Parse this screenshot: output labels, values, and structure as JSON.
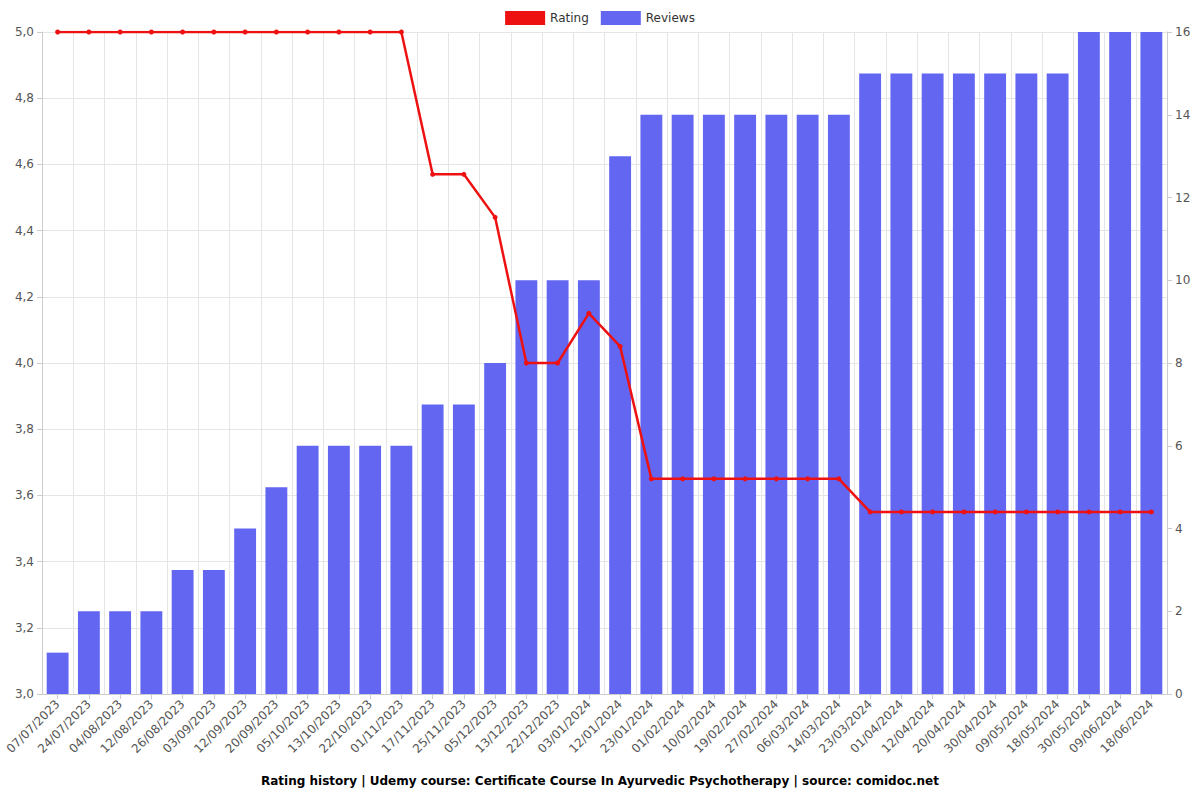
{
  "chart_data": {
    "type": "bar",
    "title": "Rating history | Udemy course: Certificate Course In Ayurvedic Psychotherapy | source: comidoc.net",
    "categories": [
      "07/07/2023",
      "24/07/2023",
      "04/08/2023",
      "12/08/2023",
      "26/08/2023",
      "03/09/2023",
      "12/09/2023",
      "20/09/2023",
      "05/10/2023",
      "13/10/2023",
      "22/10/2023",
      "01/11/2023",
      "17/11/2023",
      "25/11/2023",
      "05/12/2023",
      "13/12/2023",
      "22/12/2023",
      "03/01/2024",
      "12/01/2024",
      "23/01/2024",
      "01/02/2024",
      "10/02/2024",
      "19/02/2024",
      "27/02/2024",
      "06/03/2024",
      "14/03/2024",
      "23/03/2024",
      "01/04/2024",
      "12/04/2024",
      "20/04/2024",
      "30/04/2024",
      "09/05/2024",
      "18/05/2024",
      "30/05/2024",
      "09/06/2024",
      "18/06/2024"
    ],
    "series": [
      {
        "name": "Rating",
        "type": "line",
        "color": "#ee1111",
        "marker": "circle",
        "values": [
          5.0,
          5.0,
          5.0,
          5.0,
          5.0,
          5.0,
          5.0,
          5.0,
          5.0,
          5.0,
          5.0,
          5.0,
          4.57,
          4.57,
          4.44,
          4.0,
          4.0,
          4.15,
          4.05,
          3.65,
          3.65,
          3.65,
          3.65,
          3.65,
          3.65,
          3.65,
          3.55,
          3.55,
          3.55,
          3.55,
          3.55,
          3.55,
          3.55,
          3.55,
          3.55,
          3.55
        ]
      },
      {
        "name": "Reviews",
        "type": "bar",
        "color": "#6366f1",
        "axis": "y2",
        "values": [
          1,
          2,
          2,
          2,
          3,
          3,
          4,
          5,
          6,
          6,
          6,
          6,
          7,
          7,
          8,
          10,
          10,
          10,
          13,
          14,
          14,
          14,
          14,
          14,
          14,
          14,
          15,
          15,
          15,
          15,
          15,
          15,
          15,
          16,
          16,
          16
        ]
      }
    ],
    "ylim": [
      3.0,
      5.0
    ],
    "yticks": [
      {
        "value": 3.0,
        "label": "3,0"
      },
      {
        "value": 3.2,
        "label": "3,2"
      },
      {
        "value": 3.4,
        "label": "3,4"
      },
      {
        "value": 3.6,
        "label": "3,6"
      },
      {
        "value": 3.8,
        "label": "3,8"
      },
      {
        "value": 4.0,
        "label": "4,0"
      },
      {
        "value": 4.2,
        "label": "4,2"
      },
      {
        "value": 4.4,
        "label": "4,4"
      },
      {
        "value": 4.6,
        "label": "4,6"
      },
      {
        "value": 4.8,
        "label": "4,8"
      },
      {
        "value": 5.0,
        "label": "5,0"
      }
    ],
    "y2lim": [
      0,
      16
    ],
    "y2ticks": [
      0,
      2,
      4,
      6,
      8,
      10,
      12,
      14,
      16
    ],
    "grid": true,
    "legend": "top"
  }
}
